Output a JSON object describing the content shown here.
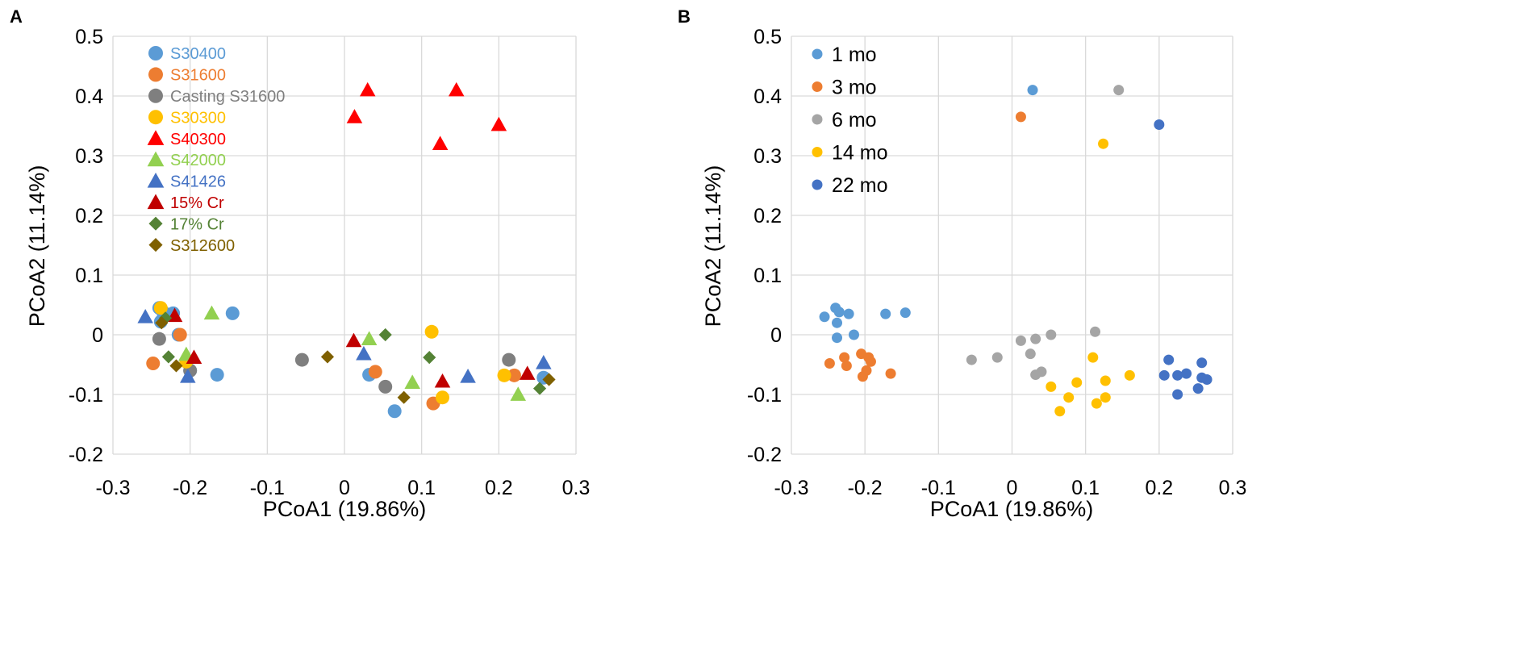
{
  "chart_data": [
    {
      "type": "scatter",
      "panel_label": "A",
      "xlabel": "PCoA1 (19.86%)",
      "ylabel": "PCoA2 (11.14%)",
      "xlim": [
        -0.3,
        0.3
      ],
      "ylim": [
        -0.2,
        0.5
      ],
      "x_ticks": [
        "-0.3",
        "-0.2",
        "-0.1",
        "0",
        "0.1",
        "0.2",
        "0.3"
      ],
      "y_ticks": [
        "-0.2",
        "-0.1",
        "0",
        "0.1",
        "0.2",
        "0.3",
        "0.4",
        "0.5"
      ],
      "grid": true,
      "legend_position": "top-left",
      "series": [
        {
          "name": "S30400",
          "marker": "circle",
          "color": "#5b9bd5",
          "points": [
            [
              -0.24,
              0.045
            ],
            [
              -0.238,
              0.022
            ],
            [
              -0.235,
              0.038
            ],
            [
              -0.222,
              0.036
            ],
            [
              -0.215,
              0.0
            ],
            [
              -0.2,
              -0.06
            ],
            [
              -0.165,
              -0.067
            ],
            [
              -0.145,
              0.036
            ],
            [
              0.032,
              -0.067
            ],
            [
              0.065,
              -0.128
            ],
            [
              0.258,
              -0.072
            ]
          ]
        },
        {
          "name": "S31600",
          "marker": "circle",
          "color": "#ed7d31",
          "points": [
            [
              -0.248,
              -0.048
            ],
            [
              -0.213,
              0.0
            ],
            [
              0.04,
              -0.062
            ],
            [
              0.115,
              -0.115
            ],
            [
              0.22,
              -0.068
            ]
          ]
        },
        {
          "name": "Casting S31600",
          "marker": "circle",
          "color": "#7f7f7f",
          "points": [
            [
              -0.24,
              -0.007
            ],
            [
              -0.2,
              -0.06
            ],
            [
              -0.055,
              -0.042
            ],
            [
              0.053,
              -0.087
            ],
            [
              0.213,
              -0.042
            ]
          ]
        },
        {
          "name": "S30300",
          "marker": "circle",
          "color": "#ffc000",
          "points": [
            [
              -0.238,
              0.045
            ],
            [
              -0.205,
              -0.045
            ],
            [
              0.113,
              0.005
            ],
            [
              0.127,
              -0.105
            ],
            [
              0.207,
              -0.068
            ]
          ]
        },
        {
          "name": "S40300",
          "marker": "triangle",
          "color": "#ff0000",
          "points": [
            [
              0.013,
              0.365
            ],
            [
              0.03,
              0.41
            ],
            [
              0.124,
              0.32
            ],
            [
              0.145,
              0.41
            ],
            [
              0.2,
              0.352
            ]
          ]
        },
        {
          "name": "S42000",
          "marker": "triangle",
          "color": "#92d050",
          "points": [
            [
              -0.172,
              0.036
            ],
            [
              -0.205,
              -0.033
            ],
            [
              0.032,
              -0.007
            ],
            [
              0.088,
              -0.08
            ],
            [
              0.225,
              -0.1
            ]
          ]
        },
        {
          "name": "S41426",
          "marker": "triangle",
          "color": "#4472c4",
          "points": [
            [
              -0.258,
              0.03
            ],
            [
              -0.203,
              -0.07
            ],
            [
              0.025,
              -0.032
            ],
            [
              0.16,
              -0.07
            ],
            [
              0.258,
              -0.047
            ]
          ]
        },
        {
          "name": "15% Cr",
          "marker": "triangle",
          "color": "#c00000",
          "points": [
            [
              -0.22,
              0.032
            ],
            [
              -0.195,
              -0.038
            ],
            [
              0.012,
              -0.01
            ],
            [
              0.127,
              -0.078
            ],
            [
              0.237,
              -0.065
            ]
          ]
        },
        {
          "name": "17% Cr",
          "marker": "diamond",
          "color": "#548235",
          "points": [
            [
              -0.232,
              0.028
            ],
            [
              -0.228,
              -0.037
            ],
            [
              0.053,
              0.0
            ],
            [
              0.11,
              -0.038
            ],
            [
              0.253,
              -0.09
            ]
          ]
        },
        {
          "name": "S312600",
          "marker": "diamond",
          "color": "#7f6000",
          "points": [
            [
              -0.237,
              0.02
            ],
            [
              -0.218,
              -0.052
            ],
            [
              -0.022,
              -0.037
            ],
            [
              0.077,
              -0.105
            ],
            [
              0.265,
              -0.075
            ]
          ]
        }
      ]
    },
    {
      "type": "scatter",
      "panel_label": "B",
      "xlabel": "PCoA1 (19.86%)",
      "ylabel": "PCoA2 (11.14%)",
      "xlim": [
        -0.3,
        0.3
      ],
      "ylim": [
        -0.2,
        0.5
      ],
      "x_ticks": [
        "-0.3",
        "-0.2",
        "-0.1",
        "0",
        "0.1",
        "0.2",
        "0.3"
      ],
      "y_ticks": [
        "-0.2",
        "-0.1",
        "0",
        "0.1",
        "0.2",
        "0.3",
        "0.4",
        "0.5"
      ],
      "grid": true,
      "legend_position": "top-left",
      "series": [
        {
          "name": "1 mo",
          "marker": "circle",
          "color": "#5b9bd5",
          "points": [
            [
              -0.255,
              0.03
            ],
            [
              -0.24,
              0.045
            ],
            [
              -0.238,
              0.02
            ],
            [
              -0.238,
              -0.005
            ],
            [
              -0.235,
              0.038
            ],
            [
              -0.222,
              0.035
            ],
            [
              -0.215,
              0.0
            ],
            [
              -0.172,
              0.035
            ],
            [
              -0.145,
              0.037
            ],
            [
              0.028,
              0.41
            ]
          ]
        },
        {
          "name": "3 mo",
          "marker": "circle",
          "color": "#ed7d31",
          "points": [
            [
              -0.248,
              -0.048
            ],
            [
              -0.228,
              -0.038
            ],
            [
              -0.225,
              -0.052
            ],
            [
              -0.205,
              -0.032
            ],
            [
              -0.203,
              -0.07
            ],
            [
              -0.198,
              -0.06
            ],
            [
              -0.195,
              -0.038
            ],
            [
              -0.192,
              -0.045
            ],
            [
              -0.165,
              -0.065
            ],
            [
              0.012,
              0.365
            ]
          ]
        },
        {
          "name": "6 mo",
          "marker": "circle",
          "color": "#a5a5a5",
          "points": [
            [
              -0.055,
              -0.042
            ],
            [
              -0.02,
              -0.038
            ],
            [
              0.012,
              -0.01
            ],
            [
              0.025,
              -0.032
            ],
            [
              0.032,
              -0.067
            ],
            [
              0.032,
              -0.007
            ],
            [
              0.04,
              -0.062
            ],
            [
              0.053,
              0.0
            ],
            [
              0.113,
              0.005
            ],
            [
              0.145,
              0.41
            ]
          ]
        },
        {
          "name": "14 mo",
          "marker": "circle",
          "color": "#ffc000",
          "points": [
            [
              0.053,
              -0.087
            ],
            [
              0.065,
              -0.128
            ],
            [
              0.077,
              -0.105
            ],
            [
              0.088,
              -0.08
            ],
            [
              0.11,
              -0.038
            ],
            [
              0.115,
              -0.115
            ],
            [
              0.124,
              0.32
            ],
            [
              0.127,
              -0.077
            ],
            [
              0.127,
              -0.105
            ],
            [
              0.16,
              -0.068
            ]
          ]
        },
        {
          "name": "22 mo",
          "marker": "circle",
          "color": "#4472c4",
          "points": [
            [
              0.2,
              0.352
            ],
            [
              0.207,
              -0.068
            ],
            [
              0.213,
              -0.042
            ],
            [
              0.225,
              -0.068
            ],
            [
              0.225,
              -0.1
            ],
            [
              0.237,
              -0.065
            ],
            [
              0.253,
              -0.09
            ],
            [
              0.258,
              -0.072
            ],
            [
              0.258,
              -0.047
            ],
            [
              0.265,
              -0.075
            ]
          ]
        }
      ]
    }
  ]
}
